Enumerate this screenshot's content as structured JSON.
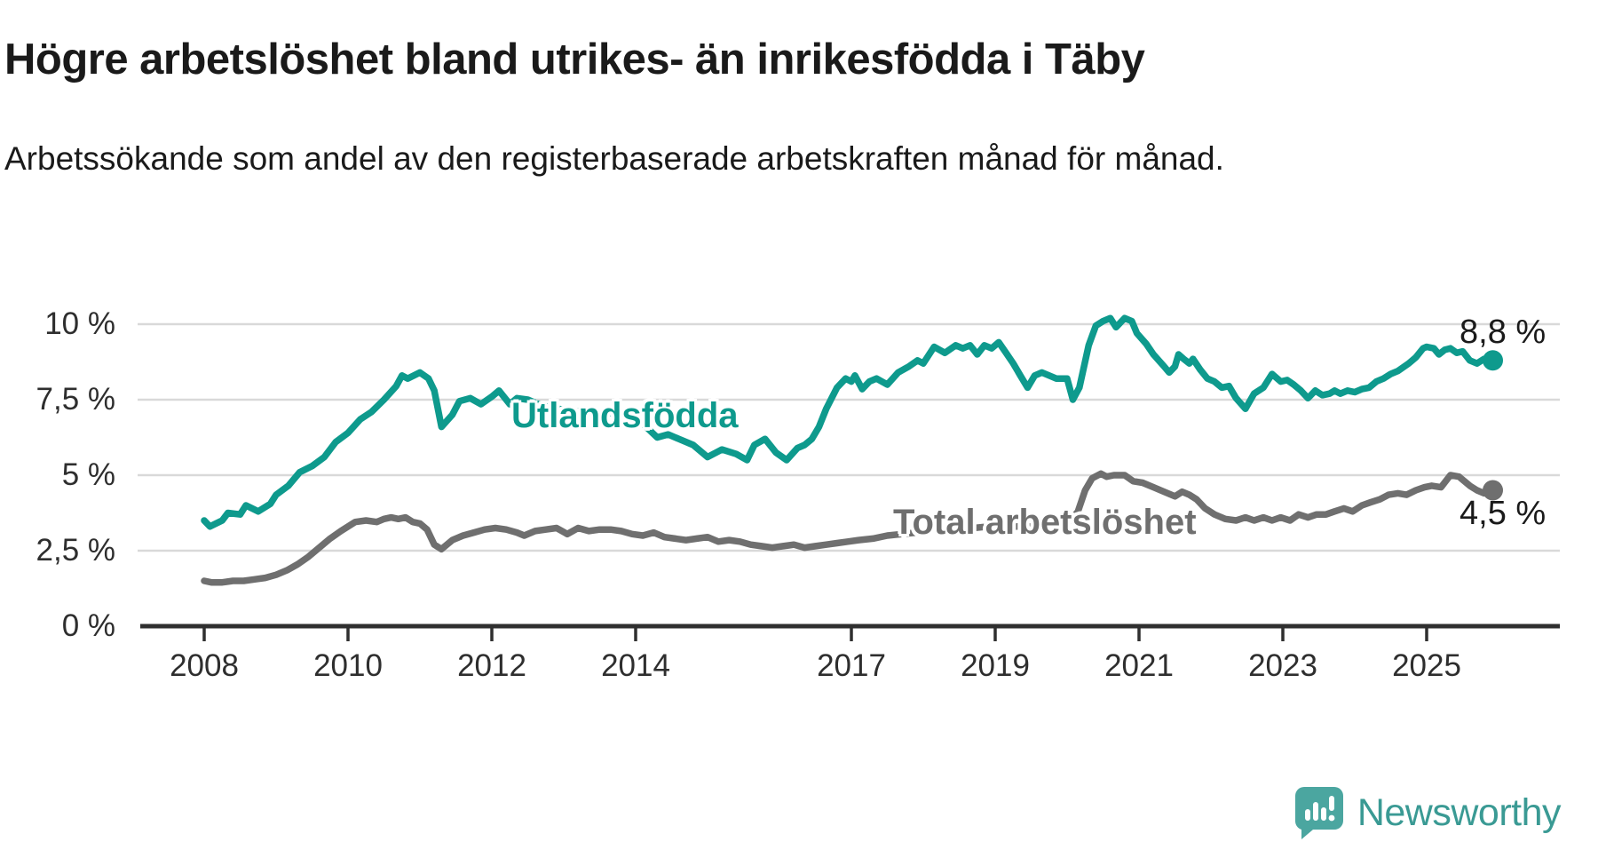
{
  "header": {
    "title": "Högre arbetslöshet bland utrikes- än inrikesfödda i Täby",
    "subtitle": "Arbetssökande som andel av den registerbaserade arbetskraften månad för månad."
  },
  "chart_data": {
    "type": "line",
    "title": "Högre arbetslöshet bland utrikes- än inrikesfödda i Täby",
    "xlabel": "",
    "ylabel": "",
    "unit": "%",
    "grid": "horizontal",
    "x_axis": {
      "tick_years": [
        2008,
        2010,
        2012,
        2014,
        2017,
        2019,
        2021,
        2023,
        2025
      ],
      "range": [
        2007.1,
        2026.2
      ]
    },
    "y_axis": {
      "tick_labels": [
        "0 %",
        "2,5 %",
        "5 %",
        "7,5 %",
        "10 %"
      ],
      "tick_values": [
        0,
        2.5,
        5,
        7.5,
        10
      ],
      "range": [
        0,
        10.4
      ]
    },
    "series": [
      {
        "name": "Utlandsfödda",
        "color": "#0e9a8d",
        "end_label": "8,8 %",
        "last_value": 8.8,
        "points": [
          [
            2008.0,
            3.5
          ],
          [
            2008.08,
            3.3
          ],
          [
            2008.25,
            3.5
          ],
          [
            2008.33,
            3.75
          ],
          [
            2008.5,
            3.7
          ],
          [
            2008.58,
            4.0
          ],
          [
            2008.75,
            3.8
          ],
          [
            2008.92,
            4.05
          ],
          [
            2009.0,
            4.35
          ],
          [
            2009.17,
            4.65
          ],
          [
            2009.33,
            5.1
          ],
          [
            2009.5,
            5.3
          ],
          [
            2009.67,
            5.6
          ],
          [
            2009.83,
            6.1
          ],
          [
            2010.0,
            6.4
          ],
          [
            2010.17,
            6.85
          ],
          [
            2010.33,
            7.1
          ],
          [
            2010.5,
            7.5
          ],
          [
            2010.67,
            7.95
          ],
          [
            2010.75,
            8.3
          ],
          [
            2010.83,
            8.2
          ],
          [
            2011.0,
            8.4
          ],
          [
            2011.12,
            8.2
          ],
          [
            2011.2,
            7.8
          ],
          [
            2011.3,
            6.6
          ],
          [
            2011.45,
            7.0
          ],
          [
            2011.55,
            7.45
          ],
          [
            2011.7,
            7.55
          ],
          [
            2011.85,
            7.35
          ],
          [
            2012.0,
            7.6
          ],
          [
            2012.1,
            7.8
          ],
          [
            2012.25,
            7.35
          ],
          [
            2012.35,
            7.55
          ],
          [
            2012.5,
            7.5
          ],
          [
            2012.7,
            7.3
          ],
          [
            2012.9,
            7.2
          ],
          [
            2013.1,
            7.15
          ],
          [
            2013.35,
            7.05
          ],
          [
            2013.6,
            7.1
          ],
          [
            2013.8,
            6.95
          ],
          [
            2013.95,
            7.0
          ],
          [
            2014.1,
            6.7
          ],
          [
            2014.3,
            6.25
          ],
          [
            2014.45,
            6.35
          ],
          [
            2014.6,
            6.2
          ],
          [
            2014.8,
            6.0
          ],
          [
            2015.0,
            5.6
          ],
          [
            2015.2,
            5.85
          ],
          [
            2015.4,
            5.7
          ],
          [
            2015.55,
            5.5
          ],
          [
            2015.65,
            6.0
          ],
          [
            2015.8,
            6.2
          ],
          [
            2015.95,
            5.75
          ],
          [
            2016.1,
            5.5
          ],
          [
            2016.25,
            5.9
          ],
          [
            2016.35,
            6.0
          ],
          [
            2016.45,
            6.2
          ],
          [
            2016.55,
            6.6
          ],
          [
            2016.65,
            7.2
          ],
          [
            2016.8,
            7.9
          ],
          [
            2016.92,
            8.2
          ],
          [
            2017.0,
            8.1
          ],
          [
            2017.05,
            8.3
          ],
          [
            2017.15,
            7.85
          ],
          [
            2017.25,
            8.1
          ],
          [
            2017.35,
            8.2
          ],
          [
            2017.5,
            8.0
          ],
          [
            2017.65,
            8.4
          ],
          [
            2017.8,
            8.6
          ],
          [
            2017.92,
            8.8
          ],
          [
            2018.0,
            8.7
          ],
          [
            2018.15,
            9.25
          ],
          [
            2018.3,
            9.05
          ],
          [
            2018.45,
            9.3
          ],
          [
            2018.55,
            9.2
          ],
          [
            2018.65,
            9.3
          ],
          [
            2018.75,
            9.0
          ],
          [
            2018.85,
            9.3
          ],
          [
            2018.95,
            9.2
          ],
          [
            2019.05,
            9.4
          ],
          [
            2019.15,
            9.05
          ],
          [
            2019.25,
            8.7
          ],
          [
            2019.35,
            8.3
          ],
          [
            2019.45,
            7.9
          ],
          [
            2019.55,
            8.3
          ],
          [
            2019.65,
            8.4
          ],
          [
            2019.75,
            8.3
          ],
          [
            2019.85,
            8.2
          ],
          [
            2020.0,
            8.2
          ],
          [
            2020.08,
            7.5
          ],
          [
            2020.17,
            7.9
          ],
          [
            2020.3,
            9.3
          ],
          [
            2020.4,
            9.95
          ],
          [
            2020.5,
            10.1
          ],
          [
            2020.6,
            10.2
          ],
          [
            2020.68,
            9.9
          ],
          [
            2020.8,
            10.2
          ],
          [
            2020.9,
            10.1
          ],
          [
            2020.97,
            9.7
          ],
          [
            2021.1,
            9.35
          ],
          [
            2021.2,
            9.0
          ],
          [
            2021.35,
            8.6
          ],
          [
            2021.42,
            8.4
          ],
          [
            2021.5,
            8.6
          ],
          [
            2021.55,
            9.0
          ],
          [
            2021.62,
            8.85
          ],
          [
            2021.7,
            8.7
          ],
          [
            2021.75,
            8.85
          ],
          [
            2021.85,
            8.5
          ],
          [
            2021.95,
            8.2
          ],
          [
            2022.05,
            8.1
          ],
          [
            2022.15,
            7.9
          ],
          [
            2022.25,
            7.95
          ],
          [
            2022.35,
            7.55
          ],
          [
            2022.48,
            7.2
          ],
          [
            2022.6,
            7.7
          ],
          [
            2022.73,
            7.9
          ],
          [
            2022.85,
            8.35
          ],
          [
            2022.97,
            8.1
          ],
          [
            2023.06,
            8.15
          ],
          [
            2023.15,
            8.0
          ],
          [
            2023.25,
            7.8
          ],
          [
            2023.35,
            7.55
          ],
          [
            2023.45,
            7.8
          ],
          [
            2023.55,
            7.65
          ],
          [
            2023.65,
            7.7
          ],
          [
            2023.72,
            7.8
          ],
          [
            2023.8,
            7.7
          ],
          [
            2023.9,
            7.8
          ],
          [
            2024.0,
            7.75
          ],
          [
            2024.1,
            7.85
          ],
          [
            2024.2,
            7.9
          ],
          [
            2024.3,
            8.1
          ],
          [
            2024.4,
            8.2
          ],
          [
            2024.5,
            8.35
          ],
          [
            2024.6,
            8.45
          ],
          [
            2024.75,
            8.7
          ],
          [
            2024.85,
            8.9
          ],
          [
            2024.95,
            9.2
          ],
          [
            2025.0,
            9.25
          ],
          [
            2025.1,
            9.2
          ],
          [
            2025.17,
            9.0
          ],
          [
            2025.25,
            9.15
          ],
          [
            2025.33,
            9.2
          ],
          [
            2025.42,
            9.05
          ],
          [
            2025.5,
            9.1
          ],
          [
            2025.6,
            8.8
          ],
          [
            2025.7,
            8.7
          ],
          [
            2025.8,
            8.85
          ],
          [
            2025.92,
            8.8
          ]
        ]
      },
      {
        "name": "Total arbetslöshet",
        "color": "#6f6f6f",
        "end_label": "4,5 %",
        "last_value": 4.5,
        "points": [
          [
            2008.0,
            1.5
          ],
          [
            2008.1,
            1.45
          ],
          [
            2008.25,
            1.45
          ],
          [
            2008.4,
            1.5
          ],
          [
            2008.55,
            1.5
          ],
          [
            2008.7,
            1.55
          ],
          [
            2008.85,
            1.6
          ],
          [
            2009.0,
            1.7
          ],
          [
            2009.15,
            1.85
          ],
          [
            2009.3,
            2.05
          ],
          [
            2009.45,
            2.3
          ],
          [
            2009.6,
            2.6
          ],
          [
            2009.75,
            2.9
          ],
          [
            2009.9,
            3.15
          ],
          [
            2010.0,
            3.3
          ],
          [
            2010.1,
            3.45
          ],
          [
            2010.25,
            3.5
          ],
          [
            2010.4,
            3.45
          ],
          [
            2010.5,
            3.55
          ],
          [
            2010.6,
            3.6
          ],
          [
            2010.7,
            3.55
          ],
          [
            2010.8,
            3.6
          ],
          [
            2010.9,
            3.45
          ],
          [
            2011.0,
            3.4
          ],
          [
            2011.1,
            3.2
          ],
          [
            2011.2,
            2.7
          ],
          [
            2011.3,
            2.55
          ],
          [
            2011.45,
            2.85
          ],
          [
            2011.6,
            3.0
          ],
          [
            2011.75,
            3.1
          ],
          [
            2011.9,
            3.2
          ],
          [
            2012.05,
            3.25
          ],
          [
            2012.2,
            3.2
          ],
          [
            2012.35,
            3.1
          ],
          [
            2012.45,
            3.0
          ],
          [
            2012.6,
            3.15
          ],
          [
            2012.75,
            3.2
          ],
          [
            2012.9,
            3.25
          ],
          [
            2013.05,
            3.05
          ],
          [
            2013.2,
            3.25
          ],
          [
            2013.35,
            3.15
          ],
          [
            2013.5,
            3.2
          ],
          [
            2013.65,
            3.2
          ],
          [
            2013.8,
            3.15
          ],
          [
            2013.95,
            3.05
          ],
          [
            2014.1,
            3.0
          ],
          [
            2014.25,
            3.1
          ],
          [
            2014.4,
            2.95
          ],
          [
            2014.55,
            2.9
          ],
          [
            2014.7,
            2.85
          ],
          [
            2014.85,
            2.9
          ],
          [
            2015.0,
            2.95
          ],
          [
            2015.15,
            2.8
          ],
          [
            2015.3,
            2.85
          ],
          [
            2015.45,
            2.8
          ],
          [
            2015.6,
            2.7
          ],
          [
            2015.75,
            2.65
          ],
          [
            2015.9,
            2.6
          ],
          [
            2016.05,
            2.65
          ],
          [
            2016.2,
            2.7
          ],
          [
            2016.35,
            2.6
          ],
          [
            2016.5,
            2.65
          ],
          [
            2016.65,
            2.7
          ],
          [
            2016.8,
            2.75
          ],
          [
            2016.95,
            2.8
          ],
          [
            2017.1,
            2.85
          ],
          [
            2017.3,
            2.9
          ],
          [
            2017.5,
            3.0
          ],
          [
            2017.7,
            3.05
          ],
          [
            2017.9,
            3.1
          ],
          [
            2018.1,
            3.2
          ],
          [
            2018.3,
            3.25
          ],
          [
            2018.5,
            3.3
          ],
          [
            2018.7,
            3.25
          ],
          [
            2018.9,
            3.3
          ],
          [
            2019.1,
            3.25
          ],
          [
            2019.3,
            3.3
          ],
          [
            2019.5,
            3.3
          ],
          [
            2019.7,
            3.35
          ],
          [
            2019.9,
            3.4
          ],
          [
            2020.05,
            3.5
          ],
          [
            2020.15,
            3.8
          ],
          [
            2020.25,
            4.5
          ],
          [
            2020.35,
            4.9
          ],
          [
            2020.47,
            5.05
          ],
          [
            2020.55,
            4.95
          ],
          [
            2020.65,
            5.0
          ],
          [
            2020.8,
            5.0
          ],
          [
            2020.92,
            4.8
          ],
          [
            2021.05,
            4.75
          ],
          [
            2021.2,
            4.6
          ],
          [
            2021.35,
            4.45
          ],
          [
            2021.5,
            4.3
          ],
          [
            2021.6,
            4.45
          ],
          [
            2021.7,
            4.35
          ],
          [
            2021.8,
            4.2
          ],
          [
            2021.92,
            3.9
          ],
          [
            2022.05,
            3.7
          ],
          [
            2022.2,
            3.55
          ],
          [
            2022.35,
            3.5
          ],
          [
            2022.48,
            3.6
          ],
          [
            2022.6,
            3.5
          ],
          [
            2022.73,
            3.6
          ],
          [
            2022.85,
            3.5
          ],
          [
            2022.97,
            3.6
          ],
          [
            2023.1,
            3.5
          ],
          [
            2023.22,
            3.7
          ],
          [
            2023.35,
            3.6
          ],
          [
            2023.47,
            3.7
          ],
          [
            2023.6,
            3.7
          ],
          [
            2023.72,
            3.8
          ],
          [
            2023.85,
            3.9
          ],
          [
            2023.97,
            3.8
          ],
          [
            2024.1,
            4.0
          ],
          [
            2024.22,
            4.1
          ],
          [
            2024.35,
            4.2
          ],
          [
            2024.47,
            4.35
          ],
          [
            2024.6,
            4.4
          ],
          [
            2024.72,
            4.35
          ],
          [
            2024.85,
            4.5
          ],
          [
            2024.97,
            4.6
          ],
          [
            2025.07,
            4.65
          ],
          [
            2025.2,
            4.6
          ],
          [
            2025.33,
            5.0
          ],
          [
            2025.45,
            4.95
          ],
          [
            2025.6,
            4.65
          ],
          [
            2025.7,
            4.5
          ],
          [
            2025.8,
            4.4
          ],
          [
            2025.92,
            4.5
          ]
        ]
      }
    ],
    "colors": {
      "gridline": "#d9d9d9",
      "axis": "#2f2f2f",
      "tick_text": "#2e2e2e"
    }
  },
  "footer": {
    "brand": "Newsworthy",
    "logo_color": "#4ba6a0"
  }
}
